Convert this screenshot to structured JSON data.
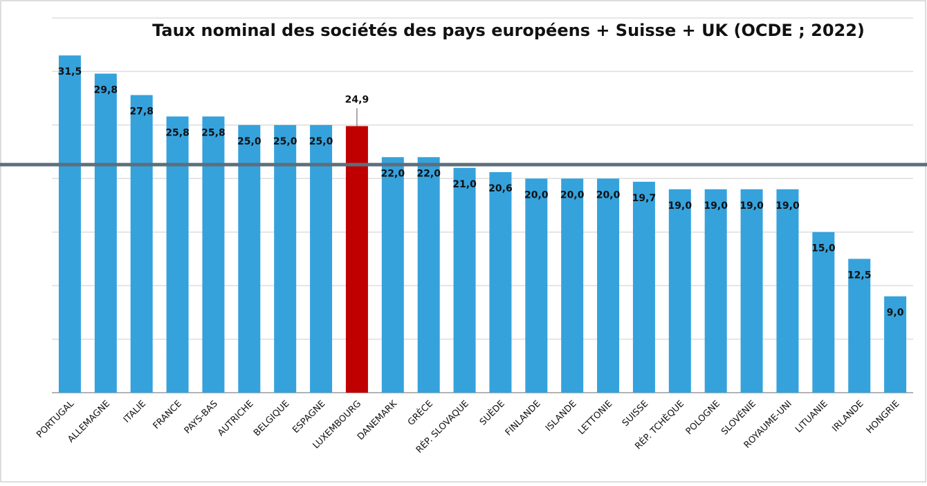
{
  "chart_data": {
    "type": "bar",
    "title": "Taux nominal des sociétés des pays européens + Suisse + UK  (OCDE ; 2022)",
    "categories": [
      "PORTUGAL",
      "ALLEMAGNE",
      "ITALIE",
      "FRANCE",
      "PAYS-BAS",
      "AUTRICHE",
      "BELGIQUE",
      "ESPAGNE",
      "LUXEMBOURG",
      "DANEMARK",
      "GRÈCE",
      "RÉP. SLOVAQUE",
      "SUÈDE",
      "FINLANDE",
      "ISLANDE",
      "LETTONIE",
      "SUISSE",
      "RÉP. TCHÈQUE",
      "POLOGNE",
      "SLOVÉNIE",
      "ROYAUME-UNI",
      "LITUANIE",
      "IRLANDE",
      "HONGRIE"
    ],
    "values": [
      31.5,
      29.8,
      27.8,
      25.8,
      25.8,
      25.0,
      25.0,
      25.0,
      24.9,
      22.0,
      22.0,
      21.0,
      20.6,
      20.0,
      20.0,
      20.0,
      19.7,
      19.0,
      19.0,
      19.0,
      19.0,
      15.0,
      12.5,
      9.0
    ],
    "value_labels": [
      "31,5",
      "29,8",
      "27,8",
      "25,8",
      "25,8",
      "25,0",
      "25,0",
      "25,0",
      "24,9",
      "22,0",
      "22,0",
      "21,0",
      "20,6",
      "20,0",
      "20,0",
      "20,0",
      "19,7",
      "19,0",
      "19,0",
      "19,0",
      "19,0",
      "15,0",
      "12,5",
      "9,0"
    ],
    "colors": [
      "#35a2dc",
      "#35a2dc",
      "#35a2dc",
      "#35a2dc",
      "#35a2dc",
      "#35a2dc",
      "#35a2dc",
      "#35a2dc",
      "#c00000",
      "#35a2dc",
      "#35a2dc",
      "#35a2dc",
      "#35a2dc",
      "#35a2dc",
      "#35a2dc",
      "#35a2dc",
      "#35a2dc",
      "#35a2dc",
      "#35a2dc",
      "#35a2dc",
      "#35a2dc",
      "#35a2dc",
      "#35a2dc",
      "#35a2dc"
    ],
    "callout_index": 8,
    "reference_line": 21.3,
    "reference_color": "#5b6f7c",
    "ylim": [
      0,
      35
    ],
    "yticks": [
      0,
      5,
      10,
      15,
      20,
      25,
      30,
      35
    ],
    "grid": true
  }
}
